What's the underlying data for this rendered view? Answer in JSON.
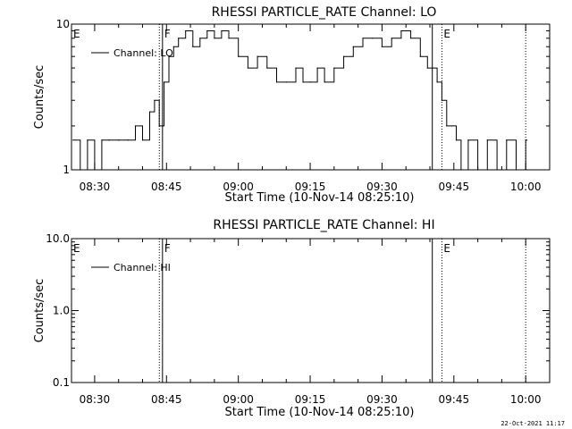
{
  "footer_timestamp": "22-Oct-2021 11:17",
  "chart_data": [
    {
      "type": "line",
      "title": "RHESSI PARTICLE_RATE Channel: LO",
      "xlabel": "Start Time (10-Nov-14 08:25:10)",
      "ylabel": "Counts/sec",
      "y_scale": "log",
      "ylim": [
        1,
        10
      ],
      "xlim": [
        "08:25:10",
        "10:05:00"
      ],
      "x_ticks": [
        "08:30",
        "08:45",
        "09:00",
        "09:15",
        "09:30",
        "09:45",
        "10:00"
      ],
      "y_ticks": [
        "1",
        "10"
      ],
      "legend": {
        "entries": [
          "Channel: LO"
        ],
        "placement": "top-left"
      },
      "markers": [
        {
          "label": "E",
          "time": "08:25:10",
          "style": "none"
        },
        {
          "label": "F",
          "time": "08:44:10",
          "style": "solid"
        },
        {
          "time": "08:43:30",
          "style": "dotted"
        },
        {
          "time": "09:40:30",
          "style": "solid"
        },
        {
          "label": "E",
          "time": "09:42:30",
          "style": "dotted"
        },
        {
          "time": "10:00:00",
          "style": "dotted"
        }
      ],
      "series": [
        {
          "name": "Channel: LO",
          "x": [
            "08:25:30",
            "08:27:00",
            "08:28:30",
            "08:30:00",
            "08:31:30",
            "08:33:00",
            "08:35:00",
            "08:37:00",
            "08:38:30",
            "08:40:00",
            "08:41:30",
            "08:42:30",
            "08:43:30",
            "08:44:30",
            "08:45:30",
            "08:46:30",
            "08:47:30",
            "08:49:00",
            "08:50:30",
            "08:52:00",
            "08:53:30",
            "08:55:00",
            "08:56:30",
            "08:58:00",
            "09:00:00",
            "09:02:00",
            "09:04:00",
            "09:06:00",
            "09:08:00",
            "09:10:00",
            "09:12:00",
            "09:13:30",
            "09:15:00",
            "09:16:30",
            "09:18:00",
            "09:20:00",
            "09:22:00",
            "09:24:00",
            "09:26:00",
            "09:28:00",
            "09:30:00",
            "09:32:00",
            "09:34:00",
            "09:36:00",
            "09:38:00",
            "09:39:30",
            "09:40:30",
            "09:41:30",
            "09:42:30",
            "09:43:30",
            "09:44:30",
            "09:45:30",
            "09:46:30",
            "09:48:00",
            "09:50:00",
            "09:52:00",
            "09:54:00",
            "09:56:00",
            "09:58:00",
            "10:00:00"
          ],
          "values": [
            1.6,
            1,
            1.6,
            1,
            1.6,
            1.6,
            1.6,
            1.6,
            2,
            1.6,
            2.5,
            3,
            2,
            4,
            6,
            7,
            8,
            9,
            7,
            8,
            9,
            8,
            9,
            8,
            6,
            5,
            6,
            5,
            4,
            4,
            5,
            4,
            4,
            5,
            4,
            5,
            6,
            7,
            8,
            8,
            7,
            8,
            9,
            8,
            6,
            5,
            5,
            4,
            3,
            2,
            2,
            1.6,
            1,
            1.6,
            1,
            1.6,
            1,
            1.6,
            1,
            1.6
          ]
        }
      ]
    },
    {
      "type": "line",
      "title": "RHESSI PARTICLE_RATE Channel: HI",
      "xlabel": "Start Time (10-Nov-14 08:25:10)",
      "ylabel": "Counts/sec",
      "y_scale": "log",
      "ylim": [
        0.1,
        10
      ],
      "xlim": [
        "08:25:10",
        "10:05:00"
      ],
      "x_ticks": [
        "08:30",
        "08:45",
        "09:00",
        "09:15",
        "09:30",
        "09:45",
        "10:00"
      ],
      "y_ticks": [
        "0.1",
        "1.0",
        "10.0"
      ],
      "legend": {
        "entries": [
          "Channel: HI"
        ],
        "placement": "top-left"
      },
      "markers": [
        {
          "label": "E",
          "time": "08:25:10",
          "style": "none"
        },
        {
          "label": "F",
          "time": "08:44:10",
          "style": "solid"
        },
        {
          "time": "08:43:30",
          "style": "dotted"
        },
        {
          "time": "09:40:30",
          "style": "solid"
        },
        {
          "label": "E",
          "time": "09:42:30",
          "style": "dotted"
        },
        {
          "time": "10:00:00",
          "style": "dotted"
        }
      ],
      "series": [
        {
          "name": "Channel: HI",
          "x": [],
          "values": []
        }
      ]
    }
  ]
}
